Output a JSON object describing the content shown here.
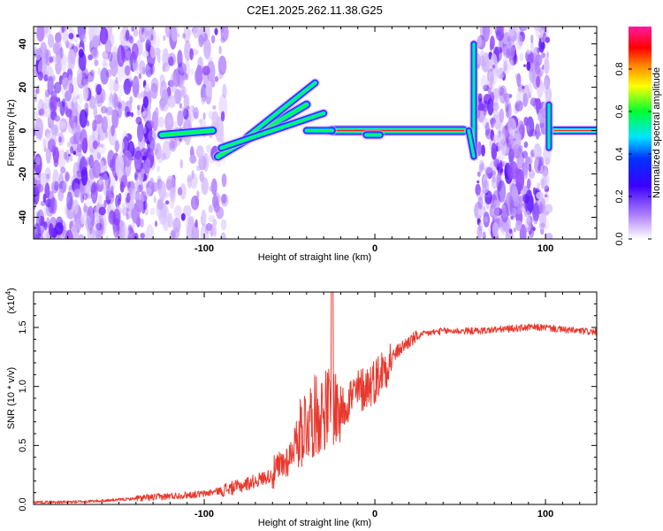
{
  "chart_data": [
    {
      "type": "heatmap",
      "title": "C2E1.2025.262.11.38.G25",
      "xlabel": "Height of straight line (km)",
      "ylabel": "Frequency (Hz)",
      "xlim": [
        -200,
        130
      ],
      "ylim": [
        -50,
        48
      ],
      "x_ticks": [
        "-100",
        "0",
        "100"
      ],
      "y_ticks": [
        "-40",
        "-20",
        "0",
        "20",
        "40"
      ],
      "colorbar": {
        "label": "Normalized spectral amplitude",
        "range": [
          0.0,
          1.0
        ],
        "ticks": [
          "0.0",
          "0.2",
          "0.4",
          "0.6",
          "0.8"
        ],
        "colors": [
          "#ffffff",
          "#b98cff",
          "#3b00ff",
          "#0000ff",
          "#00ffff",
          "#00ff00",
          "#ffff00",
          "#ff8000",
          "#ff0000",
          "#ff00ff"
        ]
      },
      "features": [
        {
          "name": "main echo track",
          "x_range": [
            -25,
            55
          ],
          "freq_hz": 0
        },
        {
          "name": "rising track",
          "x_range": [
            -90,
            -35
          ],
          "freq_hz_start": -12,
          "freq_hz_end": 22
        },
        {
          "name": "segment near -110 km",
          "x_range": [
            -125,
            -95
          ],
          "freq_hz": 0
        },
        {
          "name": "right segment",
          "x_range": [
            105,
            130
          ],
          "freq_hz": 0
        }
      ]
    },
    {
      "type": "line",
      "xlabel": "Height of straight line (km)",
      "ylabel": "SNR (10 * v/v)",
      "exponent_label": "(x10",
      "exponent_power": "4",
      "exponent_close": ")",
      "xlim": [
        -200,
        130
      ],
      "ylim": [
        0.0,
        1.8
      ],
      "x_ticks": [
        "-100",
        "0",
        "100"
      ],
      "y_ticks": [
        "0.0",
        "0.5",
        "1.0",
        "1.5"
      ],
      "color": "#e8392e",
      "series": [
        {
          "name": "SNR",
          "x": [
            -200,
            -180,
            -160,
            -140,
            -120,
            -100,
            -90,
            -80,
            -70,
            -60,
            -50,
            -45,
            -40,
            -35,
            -30,
            -25,
            -20,
            -15,
            -10,
            -5,
            0,
            5,
            10,
            15,
            20,
            25,
            30,
            40,
            50,
            60,
            70,
            80,
            90,
            100,
            110,
            120,
            130
          ],
          "y": [
            0.02,
            0.02,
            0.03,
            0.05,
            0.07,
            0.09,
            0.12,
            0.15,
            0.2,
            0.25,
            0.4,
            0.6,
            0.7,
            0.75,
            0.8,
            0.85,
            0.8,
            0.9,
            0.95,
            1.0,
            1.05,
            1.15,
            1.25,
            1.32,
            1.38,
            1.42,
            1.45,
            1.47,
            1.47,
            1.47,
            1.48,
            1.49,
            1.5,
            1.5,
            1.48,
            1.47,
            1.46
          ]
        }
      ]
    }
  ]
}
